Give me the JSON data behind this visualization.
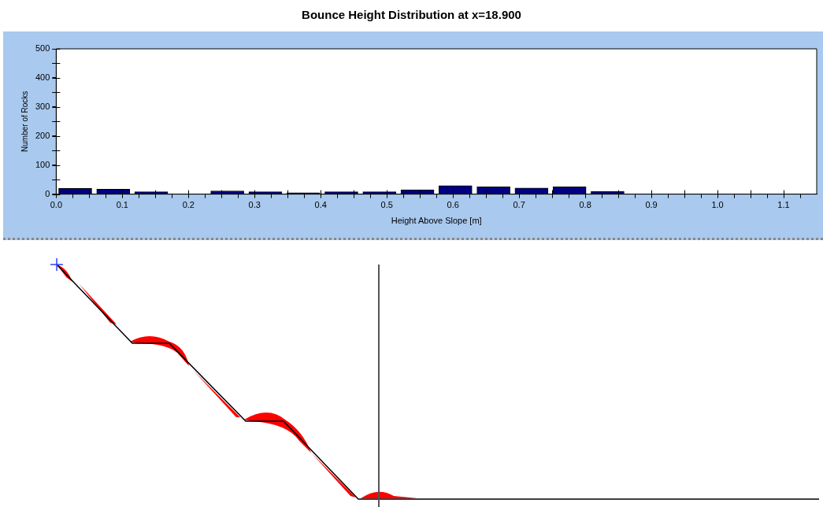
{
  "chart_data": {
    "type": "histogram",
    "title": "Bounce Height Distribution at x=18.900",
    "xlabel": "Height Above Slope [m]",
    "ylabel": "Number of Rocks",
    "bins": [
      0,
      0.0575,
      0.115,
      0.1725,
      0.23,
      0.2875,
      0.345,
      0.4025,
      0.46,
      0.5175,
      0.575,
      0.6325,
      0.69,
      0.7475,
      0.805,
      0.8625,
      0.92,
      0.9775,
      1.035,
      1.0925,
      1.15
    ],
    "values": [
      20,
      17,
      8,
      0,
      11,
      8,
      5,
      8,
      8,
      15,
      29,
      25,
      21,
      25,
      9,
      0,
      0,
      0,
      0,
      0
    ],
    "color": "#000080",
    "xlim": [
      0,
      1.15
    ],
    "xticks": [
      {
        "value": 0,
        "label": "0.0"
      },
      {
        "value": 0.05,
        "label": null
      },
      0.1,
      {
        "value": 0.15,
        "label": null
      },
      0.2,
      {
        "value": 0.25,
        "label": null
      },
      0.3,
      {
        "value": 0.35,
        "label": null
      },
      0.4,
      {
        "value": 0.45,
        "label": null
      },
      0.5,
      {
        "value": 0.55,
        "label": null
      },
      0.6,
      {
        "value": 0.65,
        "label": null
      },
      0.7,
      {
        "value": 0.75,
        "label": null
      },
      0.8,
      {
        "value": 0.85,
        "label": null
      },
      0.9,
      {
        "value": 0.95,
        "label": null
      },
      {
        "value": 1,
        "label": "1.0"
      },
      {
        "value": 1.05,
        "label": null
      },
      1.1
    ],
    "ylim": [
      0,
      500
    ],
    "yticks": [
      0,
      {
        "value": 50,
        "label": null
      },
      100,
      {
        "value": 150,
        "label": null
      },
      200,
      {
        "value": 250,
        "label": null
      },
      300,
      {
        "value": 350,
        "label": null
      },
      400,
      {
        "value": 450,
        "label": null
      },
      500
    ]
  }
}
